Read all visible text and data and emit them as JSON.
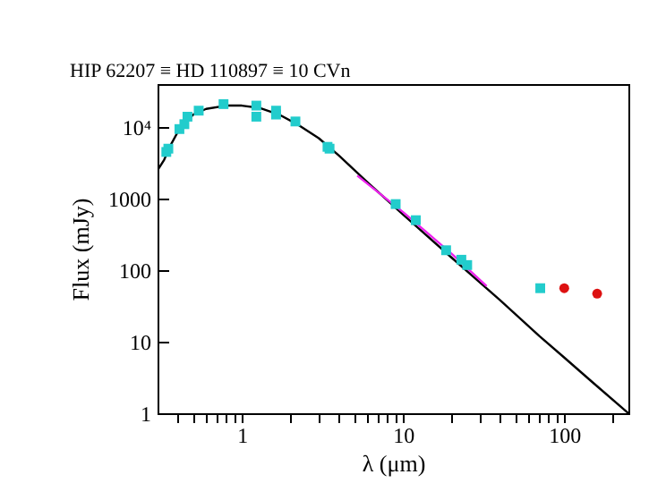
{
  "chart_data": {
    "type": "scatter",
    "title": "HIP 62207 ≡ HD 110897 ≡ 10 CVn",
    "xlabel": "λ (μm)",
    "ylabel": "Flux (mJy)",
    "log": "xy",
    "xlim": [
      0.3,
      250
    ],
    "ylim": [
      1,
      40000
    ],
    "xticks": [
      {
        "value": 0.4,
        "label": null
      },
      {
        "value": 0.5,
        "label": null
      },
      {
        "value": 0.6,
        "label": null
      },
      {
        "value": 0.7,
        "label": null
      },
      {
        "value": 0.8,
        "label": null
      },
      {
        "value": 0.9,
        "label": null
      },
      1,
      {
        "value": 2,
        "label": null
      },
      {
        "value": 3,
        "label": null
      },
      {
        "value": 4,
        "label": null
      },
      {
        "value": 5,
        "label": null
      },
      {
        "value": 6,
        "label": null
      },
      {
        "value": 7,
        "label": null
      },
      {
        "value": 8,
        "label": null
      },
      {
        "value": 9,
        "label": null
      },
      10,
      {
        "value": 20,
        "label": null
      },
      {
        "value": 30,
        "label": null
      },
      {
        "value": 40,
        "label": null
      },
      {
        "value": 50,
        "label": null
      },
      {
        "value": 60,
        "label": null
      },
      {
        "value": 70,
        "label": null
      },
      {
        "value": 80,
        "label": null
      },
      {
        "value": 90,
        "label": null
      },
      100,
      {
        "value": 200,
        "label": null
      }
    ],
    "yticks": [
      1,
      10,
      100,
      1000,
      {
        "value": 10000,
        "label": "10⁴"
      }
    ],
    "grid": false,
    "series": [
      {
        "type": "line",
        "color": "#000000",
        "line_style": "solid",
        "x": [
          0.3,
          0.33,
          0.36,
          0.4,
          0.45,
          0.5,
          0.6,
          0.8,
          1.0,
          1.3,
          1.7,
          2.2,
          3,
          4,
          6,
          10,
          20,
          40,
          70,
          100,
          150,
          250
        ],
        "values": [
          2500,
          3500,
          5500,
          8500,
          12000,
          15000,
          18000,
          20000,
          20000,
          18500,
          15000,
          11000,
          7000,
          4000,
          1700,
          600,
          150,
          38,
          12,
          6,
          2.7,
          1
        ]
      },
      {
        "type": "line",
        "color": "#ee22ee",
        "line_style": "solid",
        "x": [
          5.2,
          10,
          20,
          33
        ],
        "values": [
          2100,
          650,
          170,
          60
        ]
      },
      {
        "color": "#22cccc",
        "marker": "square",
        "x": [
          0.34,
          0.35,
          0.41,
          0.44,
          0.46,
          0.54,
          0.77,
          1.23,
          1.23,
          1.63,
          1.63,
          2.15,
          3.4,
          3.5,
          9,
          12,
          18.5,
          23,
          25,
          71
        ],
        "values": [
          4500,
          5000,
          9400,
          11000,
          14000,
          17000,
          21000,
          20000,
          14000,
          17000,
          15000,
          12000,
          5300,
          5000,
          840,
          500,
          190,
          140,
          118,
          56
        ]
      },
      {
        "color": "#dd1111",
        "marker": "circle",
        "x": [
          100,
          160
        ],
        "values": [
          56,
          47
        ]
      }
    ]
  }
}
